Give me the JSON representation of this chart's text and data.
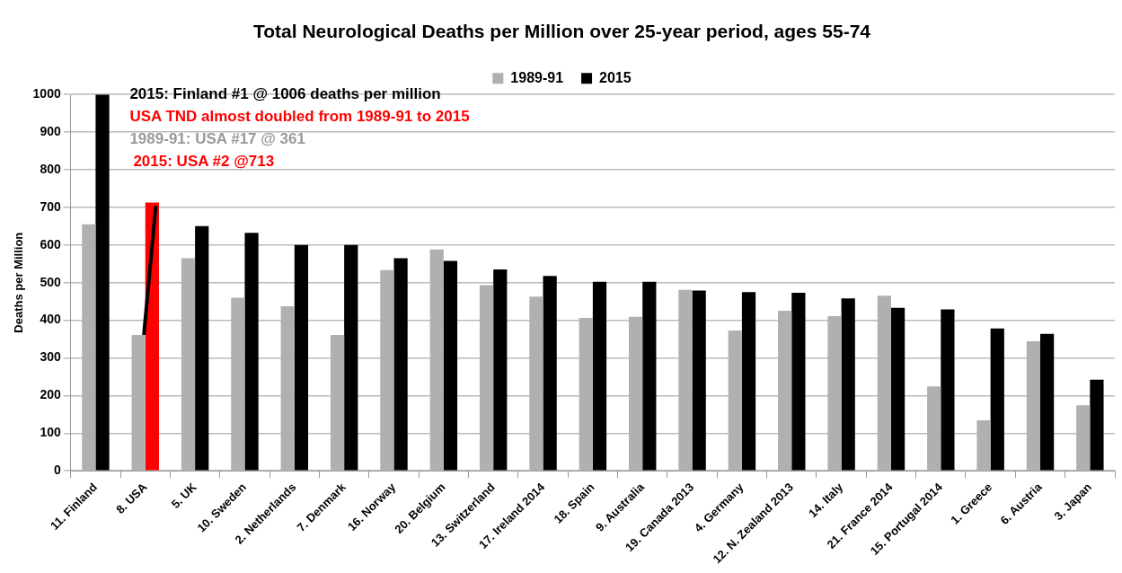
{
  "chart_data": {
    "type": "bar",
    "title": "Total Neurological Deaths per Million over 25-year period, ages 55-74",
    "ylabel": "Deaths per Million",
    "categories": [
      "11. Finland",
      "8. USA",
      "5. UK",
      "10. Sweden",
      "2. Netherlands",
      "7. Denmark",
      "16. Norway",
      "20. Belgium",
      "13. Switzerland",
      "17. Ireland 2014",
      "18. Spain",
      "9. Australia",
      "19. Canada 2013",
      "4. Germany",
      "12. N. Zealand 2013",
      "14. Italy",
      "21. France 2014",
      "15. Portugal 2014",
      "1. Greece",
      "6. Austria",
      "3. Japan"
    ],
    "series": [
      {
        "name": "1989-91",
        "color": "#b0b0b0",
        "values": [
          655,
          361,
          565,
          460,
          437,
          361,
          533,
          588,
          493,
          463,
          406,
          409,
          481,
          373,
          425,
          411,
          465,
          224,
          134,
          344,
          174
        ]
      },
      {
        "name": "2015",
        "color": "#000000",
        "colors": [
          "#000000",
          "#ff0000",
          "#000000",
          "#000000",
          "#000000",
          "#000000",
          "#000000",
          "#000000",
          "#000000",
          "#000000",
          "#000000",
          "#000000",
          "#000000",
          "#000000",
          "#000000",
          "#000000",
          "#000000",
          "#000000",
          "#000000",
          "#000000",
          "#000000"
        ],
        "values": [
          1000,
          713,
          650,
          632,
          600,
          600,
          565,
          558,
          535,
          518,
          502,
          502,
          479,
          475,
          473,
          458,
          433,
          429,
          378,
          364,
          242
        ]
      }
    ],
    "ylim": [
      0,
      1000
    ],
    "yticks": [
      0,
      100,
      200,
      300,
      400,
      500,
      600,
      700,
      800,
      900,
      1000
    ],
    "grid": "y",
    "legend": "top",
    "annotations": [
      "2015: Finland #1 @ 1006 deaths per million",
      "USA TND almost doubled from 1989-91 to 2015",
      "1989-91: USA #17 @ 361",
      "2015: USA #2 @713"
    ]
  }
}
